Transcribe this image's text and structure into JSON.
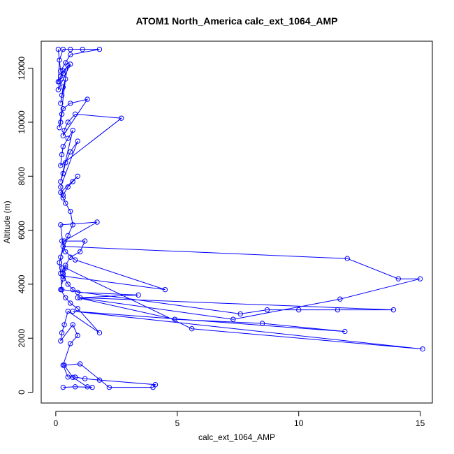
{
  "chart_data": {
    "type": "line",
    "title": "ATOM1 North_America calc_ext_1064_AMP",
    "xlabel": "calc_ext_1064_AMP",
    "ylabel": "Altitude (m)",
    "xlim": [
      -0.6,
      15.5
    ],
    "ylim": [
      -400,
      13000
    ],
    "xticks": [
      0,
      5,
      10,
      15
    ],
    "yticks": [
      0,
      2000,
      4000,
      6000,
      8000,
      10000,
      12000
    ],
    "grid": false,
    "legend": "none",
    "line_color": "#0000ff",
    "marker": "open-circle",
    "series": [
      {
        "x": [
          0.3,
          0.8,
          1.5,
          1.3,
          0.7,
          0.35,
          1.0,
          2.2,
          4.0,
          4.1,
          1.8,
          1.2,
          0.8,
          0.5,
          0.3,
          0.6,
          0.9,
          0.7,
          0.2,
          0.25,
          0.35,
          0.5,
          1.8,
          0.9,
          0.6,
          0.4,
          0.2,
          0.3,
          0.4,
          5.6,
          15.1,
          0.7,
          11.9,
          8.5,
          4.9,
          0.9,
          7.3,
          11.7,
          15.0,
          14.1,
          12.0,
          0.3,
          0.2,
          1.7,
          0.35,
          0.15,
          0.2,
          0.25,
          7.6,
          8.7,
          10.0,
          11.6,
          13.9,
          1.0,
          3.4,
          0.9,
          0.7,
          0.5,
          0.3,
          4.5,
          0.8,
          0.4,
          0.25,
          1.2,
          1.0,
          0.6,
          0.4,
          0.3,
          0.25,
          0.2,
          0.5,
          0.7,
          0.6,
          0.4,
          0.3,
          0.2,
          0.9,
          0.7,
          0.5,
          0.3,
          0.2,
          0.9,
          0.6,
          0.4,
          0.3,
          0.2,
          0.7,
          0.5,
          0.3,
          0.25,
          0.2,
          2.7,
          0.8,
          0.5,
          0.35,
          0.3,
          1.3,
          0.6,
          0.3,
          0.25,
          0.2,
          0.15,
          0.4,
          0.3,
          0.25,
          0.2,
          0.5,
          0.3,
          0.15,
          0.1,
          0.6,
          0.3,
          0.2,
          0.1,
          0.15,
          0.3,
          0.6,
          1.1,
          1.8,
          0.6,
          0.4,
          0.2,
          0.1
        ],
        "y": [
          180,
          200,
          180,
          200,
          550,
          1000,
          1050,
          180,
          180,
          280,
          450,
          500,
          560,
          560,
          1000,
          1800,
          2100,
          2500,
          1900,
          2200,
          2500,
          3000,
          2200,
          3100,
          3300,
          3500,
          3800,
          4200,
          4600,
          2350,
          1600,
          3000,
          2250,
          2550,
          2700,
          3500,
          2700,
          3450,
          4200,
          4200,
          4950,
          5400,
          6200,
          6300,
          5600,
          4800,
          4400,
          3800,
          2900,
          3050,
          3050,
          3050,
          3050,
          3500,
          3600,
          3700,
          3800,
          4000,
          4300,
          3800,
          4900,
          5200,
          5600,
          5600,
          5200,
          5000,
          4700,
          4400,
          4600,
          5000,
          5800,
          6200,
          6700,
          7000,
          7200,
          7400,
          8000,
          7800,
          7600,
          7300,
          7600,
          9300,
          8900,
          8500,
          8100,
          7800,
          9700,
          9400,
          9100,
          8800,
          8400,
          10150,
          10300,
          10000,
          9700,
          9500,
          10850,
          10700,
          10500,
          10300,
          10000,
          9800,
          11600,
          11300,
          11000,
          10700,
          12100,
          11800,
          11500,
          11200,
          12150,
          11900,
          11700,
          11500,
          12300,
          12700,
          12700,
          12700,
          12700,
          12500,
          12200,
          11900,
          12700
        ]
      }
    ]
  }
}
